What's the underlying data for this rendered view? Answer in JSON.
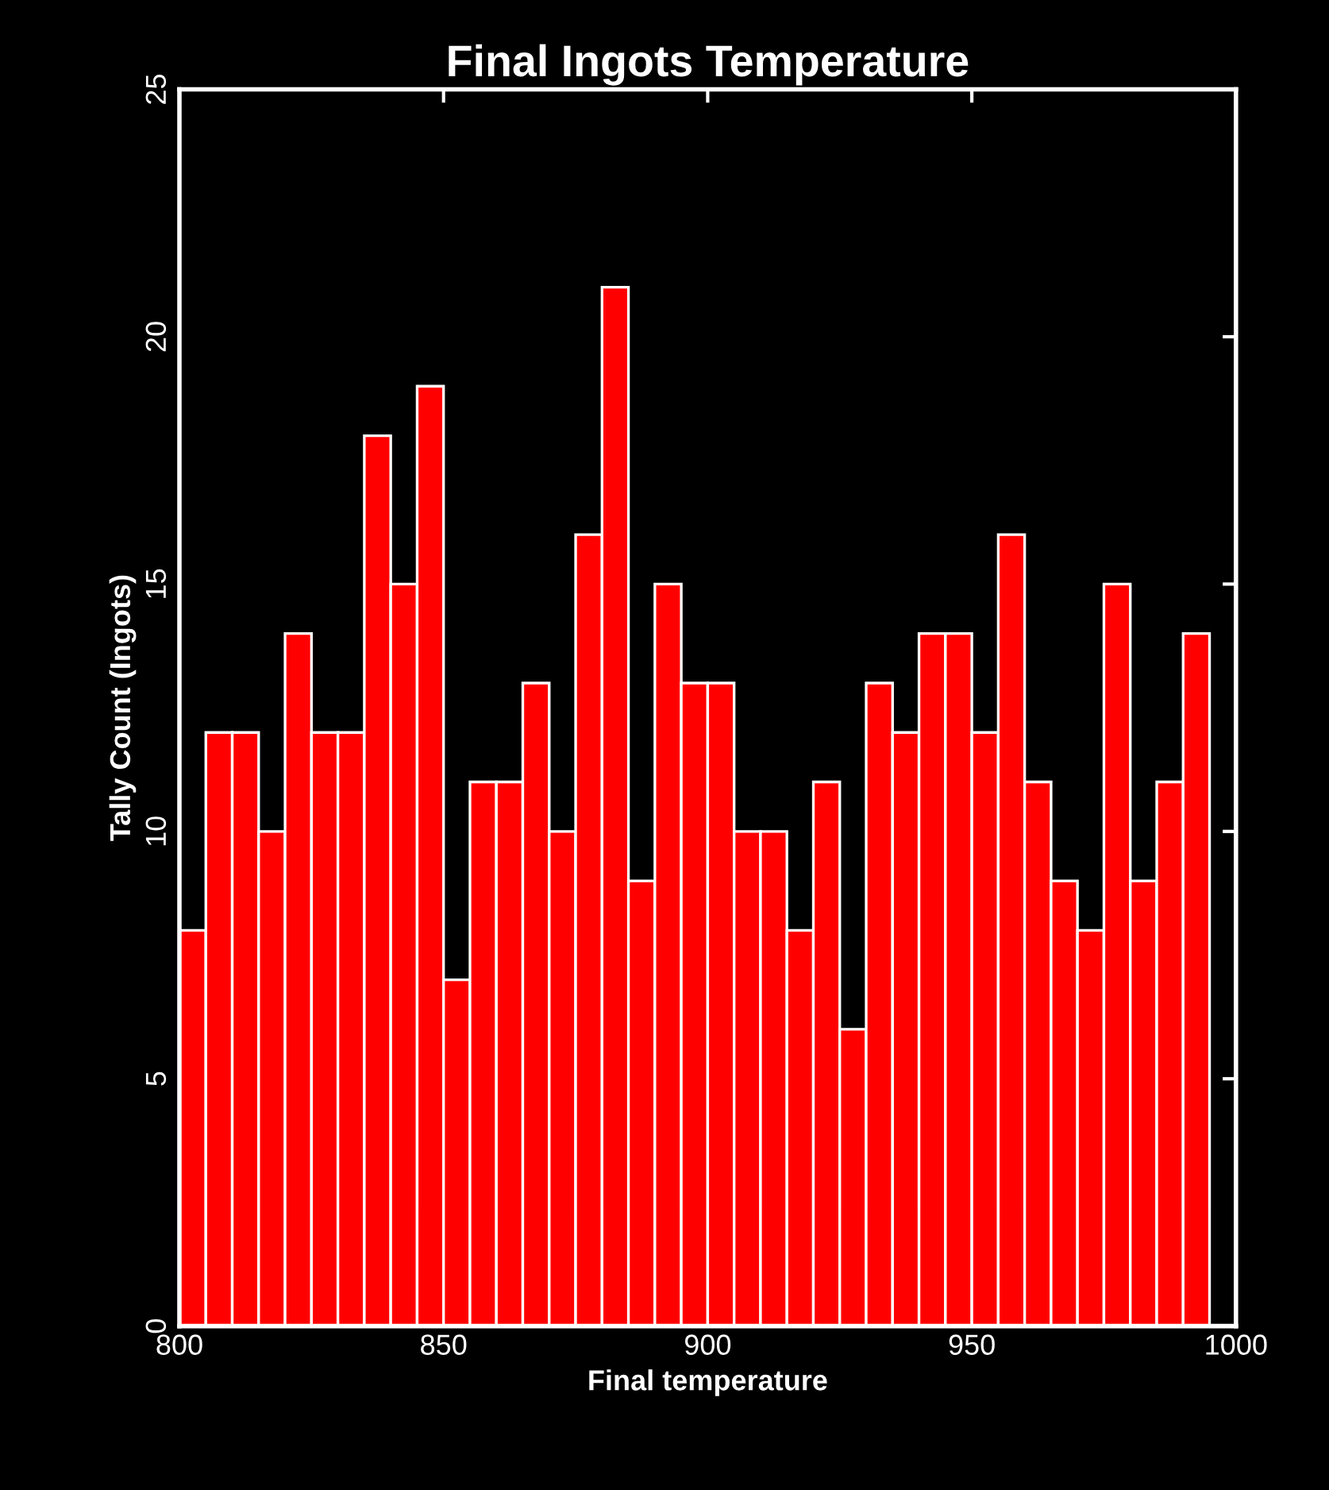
{
  "chart_data": {
    "type": "histogram",
    "title": "Final Ingots Temperature",
    "xlabel": "Final temperature",
    "ylabel": "Tally Count (Ingots)",
    "bins": [
      800,
      805,
      810,
      815,
      820,
      825,
      830,
      835,
      840,
      845,
      850,
      855,
      860,
      865,
      870,
      875,
      880,
      885,
      890,
      895,
      900,
      905,
      910,
      915,
      920,
      925,
      930,
      935,
      940,
      945,
      950,
      955,
      960,
      965,
      970,
      975,
      980,
      985,
      990,
      995
    ],
    "values": [
      8,
      12,
      12,
      10,
      14,
      12,
      12,
      18,
      15,
      19,
      7,
      11,
      11,
      13,
      10,
      16,
      21,
      9,
      15,
      13,
      13,
      10,
      10,
      8,
      11,
      6,
      13,
      12,
      14,
      14,
      12,
      16,
      11,
      9,
      8,
      15,
      9,
      11,
      14
    ],
    "color": "#ff0000",
    "xlim": [
      800,
      1000
    ],
    "xticks": [
      800,
      850,
      900,
      950,
      1000
    ],
    "ylim": [
      0,
      25
    ],
    "yticks": [
      0,
      5,
      10,
      15,
      20,
      25
    ],
    "grid": false,
    "legend": false
  }
}
